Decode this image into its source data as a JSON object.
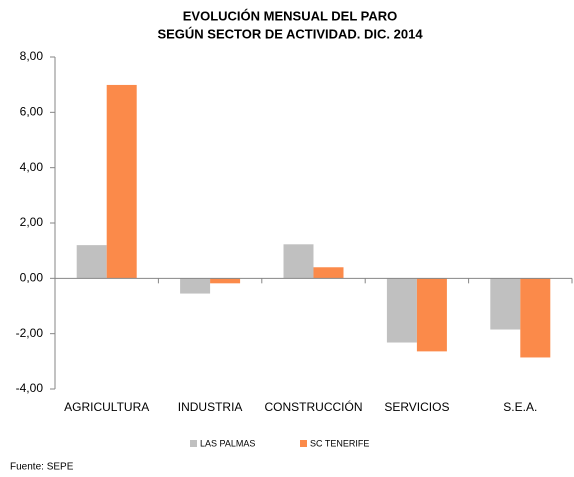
{
  "chart_data": {
    "type": "bar",
    "title": "EVOLUCIÓN MENSUAL DEL PARO",
    "subtitle": "SEGÚN SECTOR DE ACTIVIDAD. DIC. 2014",
    "categories": [
      "AGRICULTURA",
      "INDUSTRIA",
      "CONSTRUCCIÓN",
      "SERVICIOS",
      "S.E.A."
    ],
    "series": [
      {
        "name": "LAS PALMAS",
        "color": "#c0c0c0",
        "values": [
          1.2,
          -0.55,
          1.23,
          -2.32,
          -1.85
        ]
      },
      {
        "name": "SC TENERIFE",
        "color": "#fb8a4a",
        "values": [
          6.99,
          -0.18,
          0.4,
          -2.64,
          -2.86
        ]
      }
    ],
    "ylim": [
      -4,
      8
    ],
    "yticks": [
      {
        "value": -4,
        "label": "-4,00"
      },
      {
        "value": -2,
        "label": "-2,00"
      },
      {
        "value": 0,
        "label": "0,00"
      },
      {
        "value": 2,
        "label": "2,00"
      },
      {
        "value": 4,
        "label": "4,00"
      },
      {
        "value": 6,
        "label": "6,00"
      },
      {
        "value": 8,
        "label": "8,00"
      }
    ],
    "grid": false,
    "legend": "bottom",
    "source": "Fuente: SEPE"
  }
}
